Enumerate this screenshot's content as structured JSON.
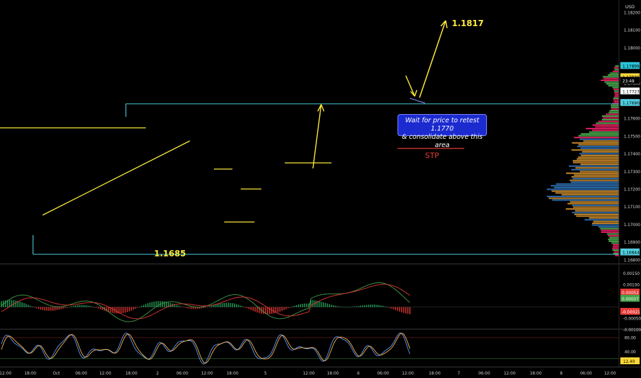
{
  "chart_data": {
    "type": "candlestick",
    "symbol_currency": "USD",
    "price_axis": {
      "ticks": [
        "1.18200",
        "1.18100",
        "1.18000",
        "1.17900",
        "1.17800",
        "1.17700",
        "1.17600",
        "1.17500",
        "1.17400",
        "1.17300",
        "1.17200",
        "1.17100",
        "1.17000",
        "1.16900",
        "1.16800"
      ],
      "values": [
        1.182,
        1.181,
        1.18,
        1.179,
        1.178,
        1.177,
        1.176,
        1.175,
        1.174,
        1.173,
        1.172,
        1.171,
        1.17,
        1.169,
        1.168
      ],
      "ylim": [
        1.1678,
        1.1827
      ]
    },
    "price_labels": [
      {
        "text": "1.17899",
        "color": "#26c6da",
        "text_color": "#000000",
        "price": 1.17899
      },
      {
        "text": "1.17836",
        "color": "#fdd835",
        "text_color": "#000000",
        "price": 1.17836
      },
      {
        "text": "23:49",
        "color": "#000000",
        "text_color": "#ffffff",
        "price": 1.17815
      },
      {
        "text": "1.17723",
        "color": "#ffffff",
        "text_color": "#000000",
        "price": 1.17755
      },
      {
        "text": "1.17690",
        "color": "#4dd0e1",
        "text_color": "#000000",
        "price": 1.1769
      },
      {
        "text": "1.16844",
        "color": "#4dd0e1",
        "text_color": "#000000",
        "price": 1.16844
      }
    ],
    "time_axis": [
      "12:00",
      "18:00",
      "Oct",
      "06:00",
      "12:00",
      "18:00",
      "2",
      "06:00",
      "12:00",
      "18:00",
      "5",
      "12:00",
      "18:00",
      "6",
      "06:00",
      "12:00",
      "18:00",
      "7",
      "06:00",
      "12:00",
      "18:00",
      "8",
      "06:00",
      "12:00"
    ],
    "annotations": {
      "target": "1.1817",
      "support": "1.1685",
      "stop": "STP",
      "callout": [
        "Wait for price to retest 1.1770",
        "& consolidate above this area"
      ]
    },
    "macd": {
      "ticks": [
        "0.00150",
        "0.00100",
        "0.00050",
        "-0.00050"
      ],
      "tick_values": [
        0.0015,
        0.001,
        0.0005,
        -0.0005
      ],
      "ylim": [
        -0.00095,
        0.00185
      ],
      "labels": [
        {
          "text": "0.00052",
          "color": "#e53935"
        },
        {
          "text": "0.00037",
          "color": "#43a047"
        },
        {
          "text": "-0.00021",
          "color": "#e53935"
        }
      ]
    },
    "stoch": {
      "ticks": [
        "80.00",
        "40.00",
        "20.00"
      ],
      "tick_values": [
        80,
        40,
        20
      ],
      "ylim": [
        0,
        100
      ],
      "labels": [
        {
          "text": "12.40",
          "color": "#fdd835"
        }
      ],
      "axis_top_label": "-0.00100"
    },
    "colors": {
      "up": "#26a65b",
      "down": "#e53935",
      "trend": "#ffeb3b",
      "level": "#4dd0e1",
      "ma_fast": "#26c6da",
      "ma_slow": "#c8d0d8"
    }
  }
}
